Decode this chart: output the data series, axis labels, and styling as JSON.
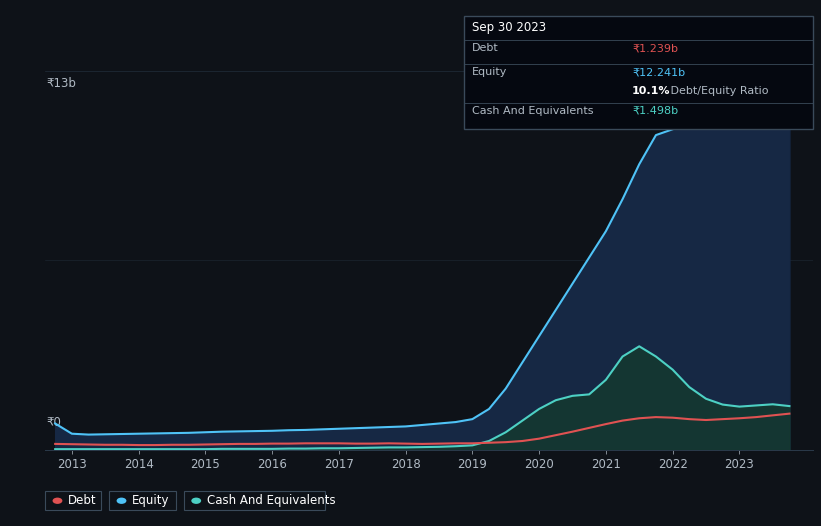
{
  "background_color": "#0e1218",
  "plot_bg_color": "#0e1218",
  "title_box": {
    "date": "Sep 30 2023",
    "debt_label": "Debt",
    "debt_value": "₹1.239b",
    "equity_label": "Equity",
    "equity_value": "₹12.241b",
    "ratio_text": "10.1% Debt/Equity Ratio",
    "cash_label": "Cash And Equivalents",
    "cash_value": "₹1.498b",
    "debt_color": "#e05252",
    "equity_color": "#4fc3f7",
    "cash_color": "#4dd0c4"
  },
  "y_label": "₹13b",
  "y_zero_label": "₹0",
  "x_ticks": [
    2013,
    2014,
    2015,
    2016,
    2017,
    2018,
    2019,
    2020,
    2021,
    2022,
    2023
  ],
  "debt_color": "#e05252",
  "equity_color": "#4fc3f7",
  "cash_color": "#4dd0c4",
  "equity_fill_color": "#162844",
  "cash_fill_color": "#143830",
  "grid_color": "#2a3a4a",
  "text_color": "#b0bac4",
  "legend_border_color": "#3a4a5a",
  "ylim": [
    0,
    13
  ],
  "xlim_start": 2012.6,
  "xlim_end": 2024.1,
  "time_points": [
    2012.75,
    2013.0,
    2013.25,
    2013.5,
    2013.75,
    2014.0,
    2014.25,
    2014.5,
    2014.75,
    2015.0,
    2015.25,
    2015.5,
    2015.75,
    2016.0,
    2016.25,
    2016.5,
    2016.75,
    2017.0,
    2017.25,
    2017.5,
    2017.75,
    2018.0,
    2018.25,
    2018.5,
    2018.75,
    2019.0,
    2019.25,
    2019.5,
    2019.75,
    2020.0,
    2020.25,
    2020.5,
    2020.75,
    2021.0,
    2021.25,
    2021.5,
    2021.75,
    2022.0,
    2022.25,
    2022.5,
    2022.75,
    2023.0,
    2023.25,
    2023.5,
    2023.75
  ],
  "equity_values": [
    0.9,
    0.55,
    0.52,
    0.53,
    0.54,
    0.55,
    0.56,
    0.57,
    0.58,
    0.6,
    0.62,
    0.63,
    0.64,
    0.65,
    0.67,
    0.68,
    0.7,
    0.72,
    0.74,
    0.76,
    0.78,
    0.8,
    0.85,
    0.9,
    0.95,
    1.05,
    1.4,
    2.1,
    3.0,
    3.9,
    4.8,
    5.7,
    6.6,
    7.5,
    8.6,
    9.8,
    10.8,
    11.0,
    11.2,
    11.4,
    11.6,
    11.8,
    12.0,
    12.15,
    12.241
  ],
  "debt_values": [
    0.2,
    0.19,
    0.18,
    0.17,
    0.17,
    0.16,
    0.16,
    0.17,
    0.17,
    0.18,
    0.19,
    0.2,
    0.2,
    0.21,
    0.21,
    0.22,
    0.22,
    0.22,
    0.21,
    0.21,
    0.22,
    0.21,
    0.2,
    0.21,
    0.22,
    0.22,
    0.24,
    0.26,
    0.3,
    0.38,
    0.5,
    0.62,
    0.75,
    0.88,
    1.0,
    1.08,
    1.12,
    1.1,
    1.05,
    1.02,
    1.05,
    1.08,
    1.12,
    1.18,
    1.239
  ],
  "cash_values": [
    0.02,
    0.02,
    0.02,
    0.02,
    0.02,
    0.02,
    0.02,
    0.02,
    0.02,
    0.02,
    0.03,
    0.03,
    0.03,
    0.03,
    0.04,
    0.04,
    0.05,
    0.05,
    0.06,
    0.07,
    0.08,
    0.08,
    0.09,
    0.1,
    0.12,
    0.15,
    0.3,
    0.6,
    1.0,
    1.4,
    1.7,
    1.85,
    1.9,
    2.4,
    3.2,
    3.55,
    3.2,
    2.75,
    2.15,
    1.75,
    1.55,
    1.48,
    1.52,
    1.56,
    1.498
  ]
}
